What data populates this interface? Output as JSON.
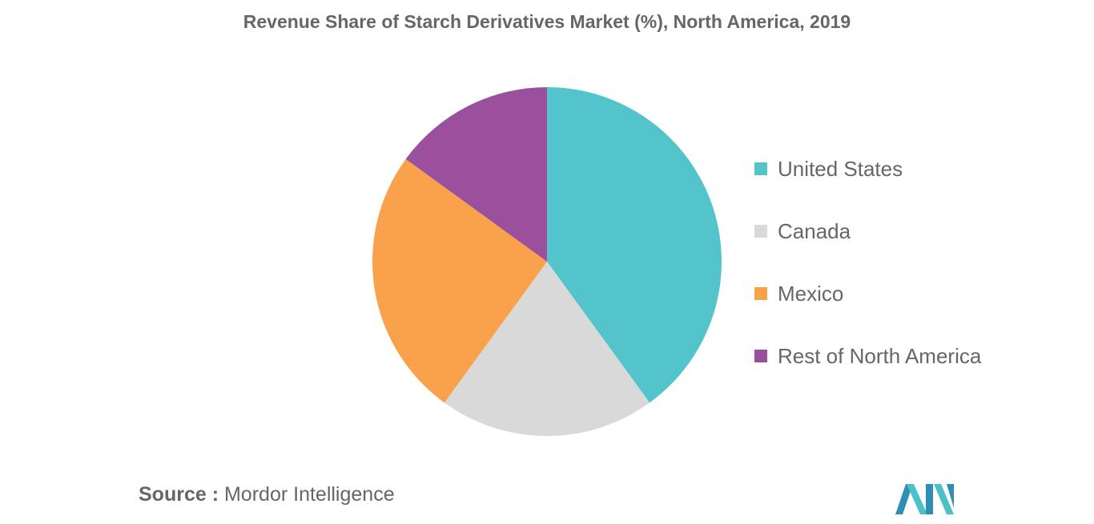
{
  "chart_data": {
    "type": "pie",
    "title": "Revenue Share of Starch Derivatives Market (%), North America, 2019",
    "slices": [
      {
        "label": "United States",
        "value": 40,
        "color": "#52C4CA"
      },
      {
        "label": "Canada",
        "value": 20,
        "color": "#D9D9D9"
      },
      {
        "label": "Mexico",
        "value": 25,
        "color": "#FAA14B"
      },
      {
        "label": "Rest of North America",
        "value": 15,
        "color": "#9B509D"
      }
    ],
    "legend_position": "right"
  },
  "source": {
    "label": "Source :",
    "text": "Mordor Intelligence"
  },
  "logo": {
    "icon": "mordor-intelligence-logo-icon",
    "colors": [
      "#2E8FB5",
      "#4CC2C8"
    ]
  }
}
